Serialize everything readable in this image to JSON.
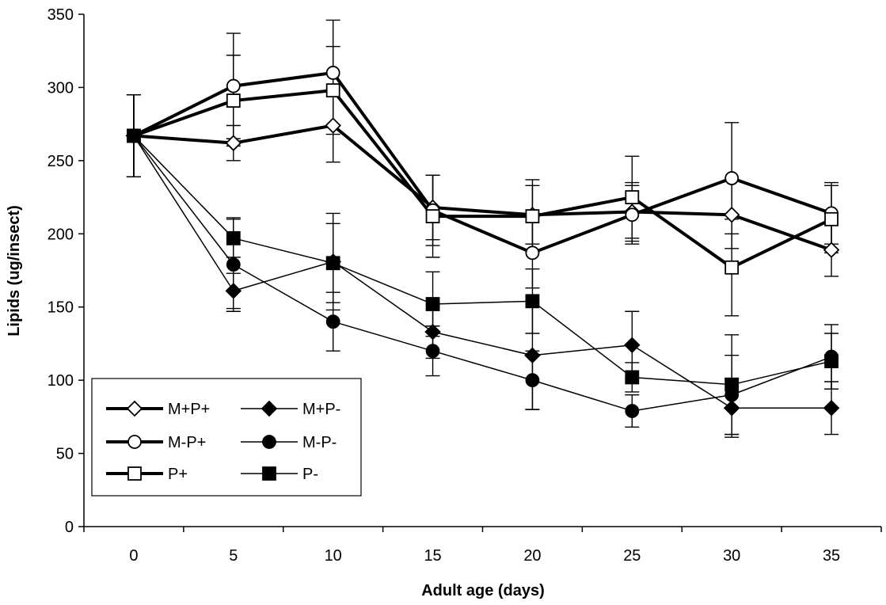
{
  "chart_data": {
    "type": "line",
    "xlabel": "Adult age (days)",
    "ylabel": "Lipids (ug/insect)",
    "x": [
      0,
      5,
      10,
      15,
      20,
      25,
      30,
      35
    ],
    "xlim": [
      -2.5,
      37.5
    ],
    "ylim": [
      0,
      350
    ],
    "yticks": [
      0,
      50,
      100,
      150,
      200,
      250,
      300,
      350
    ],
    "grid": false,
    "legend_position": "bottom-left",
    "series": [
      {
        "name": "M+P+",
        "marker": "diamond",
        "fill": "open",
        "line": "thick",
        "values": [
          267,
          262,
          274,
          218,
          213,
          215,
          213,
          189
        ],
        "errors": [
          28,
          12,
          25,
          22,
          20,
          20,
          23,
          18
        ]
      },
      {
        "name": "M+P-",
        "marker": "diamond",
        "fill": "filled",
        "line": "thin",
        "values": [
          267,
          161,
          181,
          133,
          117,
          124,
          81,
          81
        ],
        "errors": [
          28,
          12,
          33,
          18,
          37,
          23,
          20,
          18
        ]
      },
      {
        "name": "M-P+",
        "marker": "circle",
        "fill": "open",
        "line": "thick",
        "values": [
          267,
          301,
          310,
          216,
          187,
          213,
          238,
          214
        ],
        "errors": [
          28,
          36,
          36,
          24,
          24,
          20,
          38,
          21
        ]
      },
      {
        "name": "M-P-",
        "marker": "circle",
        "fill": "filled",
        "line": "thin",
        "values": [
          267,
          179,
          140,
          120,
          100,
          79,
          90,
          116
        ],
        "errors": [
          28,
          32,
          20,
          17,
          20,
          11,
          27,
          22
        ]
      },
      {
        "name": "P+",
        "marker": "square",
        "fill": "open",
        "line": "thick",
        "values": [
          267,
          291,
          298,
          212,
          212,
          225,
          177,
          210
        ],
        "errors": [
          28,
          31,
          30,
          28,
          25,
          28,
          33,
          23
        ]
      },
      {
        "name": "P-",
        "marker": "square",
        "fill": "filled",
        "line": "thin",
        "values": [
          267,
          197,
          180,
          152,
          154,
          102,
          97,
          113
        ],
        "errors": [
          28,
          13,
          27,
          22,
          22,
          10,
          34,
          19
        ]
      }
    ]
  }
}
